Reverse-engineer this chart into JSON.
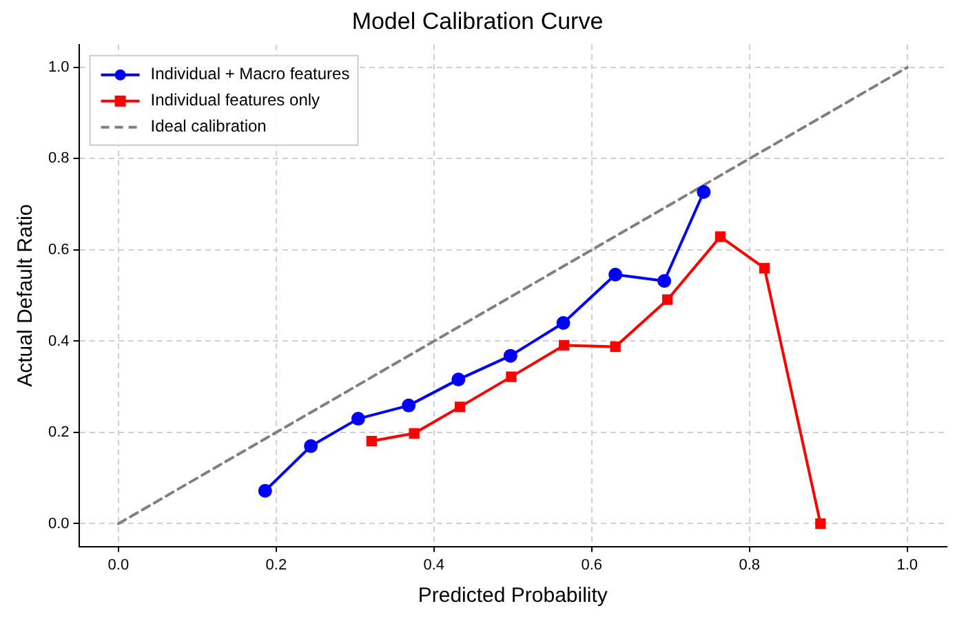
{
  "chart_data": {
    "type": "line",
    "title": "Model Calibration Curve",
    "xlabel": "Predicted Probability",
    "ylabel": "Actual Default Ratio",
    "xlim": [
      -0.05,
      1.05
    ],
    "ylim": [
      -0.05,
      1.05
    ],
    "xticks": [
      {
        "value": 0,
        "label": "0.0"
      },
      0.2,
      0.4,
      0.6,
      0.8,
      {
        "value": 1,
        "label": "1.0"
      }
    ],
    "yticks": [
      {
        "value": 0,
        "label": "0.0"
      },
      0.2,
      0.4,
      0.6,
      0.8,
      {
        "value": 1,
        "label": "1.0"
      }
    ],
    "grid": true,
    "legend": "top left",
    "series": [
      {
        "name": "Individual + Macro features",
        "color": "#0000ff",
        "marker": "circle",
        "line_style": "solid",
        "x": [
          0.186,
          0.244,
          0.304,
          0.368,
          0.431,
          0.497,
          0.564,
          0.63,
          0.692,
          0.742
        ],
        "values": [
          0.072,
          0.17,
          0.23,
          0.259,
          0.316,
          0.368,
          0.44,
          0.546,
          0.532,
          0.727
        ]
      },
      {
        "name": "Individual features only",
        "color": "#ff0000",
        "marker": "square",
        "line_style": "solid",
        "x": [
          0.321,
          0.375,
          0.433,
          0.498,
          0.565,
          0.63,
          0.696,
          0.763,
          0.819,
          0.89
        ],
        "values": [
          0.181,
          0.198,
          0.256,
          0.322,
          0.391,
          0.388,
          0.491,
          0.629,
          0.56,
          0.0
        ]
      },
      {
        "name": "Ideal calibration",
        "color": "#808080",
        "marker": "none",
        "line_style": "dashed",
        "x": [
          0,
          1
        ],
        "values": [
          0,
          1
        ]
      }
    ]
  }
}
